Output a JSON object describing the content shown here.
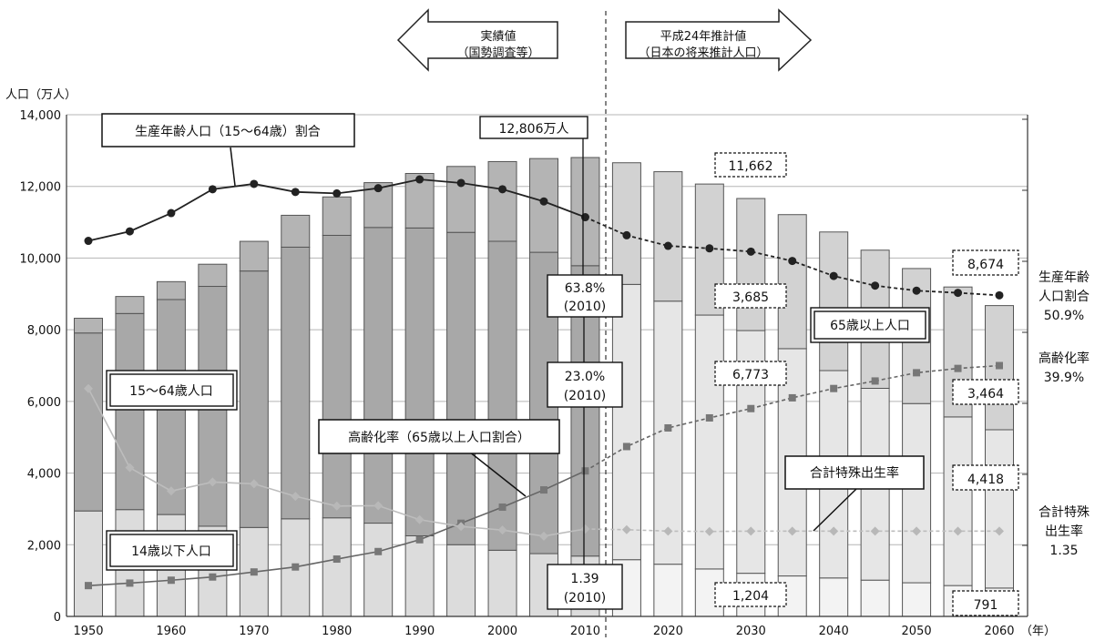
{
  "chart_data": {
    "type": "bar",
    "y_axis_label": "人口（万人）",
    "x_unit": "（年）",
    "ylim": [
      0,
      14000
    ],
    "y_ticks": [
      "0",
      "2,000",
      "4,000",
      "6,000",
      "8,000",
      "10,000",
      "12,000",
      "14,000"
    ],
    "x_tick_labels": [
      "1950",
      "1960",
      "1970",
      "1980",
      "1990",
      "2000",
      "2010",
      "2020",
      "2030",
      "2040",
      "2050",
      "2060"
    ],
    "years": [
      1950,
      1955,
      1960,
      1965,
      1970,
      1975,
      1980,
      1985,
      1990,
      1995,
      2000,
      2005,
      2010,
      2015,
      2020,
      2025,
      2030,
      2035,
      2040,
      2045,
      2050,
      2055,
      2060
    ],
    "stacks": {
      "under15": [
        2943,
        2980,
        2843,
        2517,
        2482,
        2723,
        2751,
        2603,
        2249,
        2001,
        1847,
        1752,
        1684,
        1583,
        1457,
        1324,
        1204,
        1129,
        1073,
        1012,
        939,
        861,
        791
      ],
      "age15_64": [
        4966,
        5473,
        6000,
        6693,
        7157,
        7581,
        7883,
        8251,
        8590,
        8716,
        8622,
        8409,
        8103,
        7682,
        7341,
        7085,
        6773,
        6343,
        5787,
        5353,
        5001,
        4706,
        4418
      ],
      "over65": [
        411,
        475,
        535,
        618,
        739,
        887,
        1065,
        1247,
        1489,
        1826,
        2201,
        2567,
        2948,
        3395,
        3612,
        3657,
        3685,
        3741,
        3868,
        3856,
        3768,
        3626,
        3464
      ],
      "total": [
        8320,
        8928,
        9342,
        9828,
        10467,
        11194,
        11706,
        12105,
        12361,
        12557,
        12693,
        12777,
        12806,
        12660,
        12410,
        12066,
        11662,
        11212,
        10728,
        10221,
        9708,
        9193,
        8674
      ]
    },
    "lines": [
      {
        "name": "生産年齢人口（15〜64歳）割合",
        "values": [
          10480,
          10745,
          11255,
          11920,
          12070,
          11845,
          11805,
          11950,
          12195,
          12095,
          11920,
          11580,
          11140,
          10635,
          10340,
          10270,
          10180,
          9920,
          9500,
          9230,
          9090,
          9030,
          8960
        ]
      },
      {
        "name": "高齢化率（65歳以上人口割合）",
        "values": [
          860,
          930,
          1010,
          1100,
          1240,
          1380,
          1600,
          1810,
          2140,
          2600,
          3050,
          3530,
          4060,
          4740,
          5260,
          5540,
          5800,
          6100,
          6360,
          6570,
          6800,
          6920,
          7000
        ]
      },
      {
        "name": "合計特殊出生率",
        "values": [
          6360,
          4150,
          3500,
          3750,
          3700,
          3350,
          3080,
          3090,
          2700,
          2510,
          2410,
          2240,
          2440,
          2420,
          2380,
          2370,
          2380,
          2380,
          2380,
          2380,
          2380,
          2380,
          2380
        ]
      }
    ]
  },
  "header": {
    "left_arrow_l1": "実績値",
    "left_arrow_l2": "（国勢調査等）",
    "right_arrow_l1": "平成24年推計値",
    "right_arrow_l2": "（日本の将来推計人口）"
  },
  "labels": {
    "working_ratio": "生産年齢人口（15〜64歳）割合",
    "age15_64": "15〜64歳人口",
    "aging_rate": "高齢化率（65歳以上人口割合）",
    "under14": "14歳以下人口",
    "over65": "65歳以上人口",
    "tfr": "合計特殊出生率"
  },
  "callouts": {
    "total_2010": "12,806万人",
    "ratio_2010_l1": "63.8%",
    "ratio_2010_l2": "(2010)",
    "aging_2010_l1": "23.0%",
    "aging_2010_l2": "(2010)",
    "tfr_2010_l1": "1.39",
    "tfr_2010_l2": "(2010)",
    "total_2030": "11,662",
    "over65_2030": "3,685",
    "age15_64_2030": "6,773",
    "under15_2030": "1,204",
    "total_2060": "8,674",
    "over65_2060": "3,464",
    "age15_64_2060": "4,418",
    "under15_2060": "791"
  },
  "right_labels": {
    "ratio_l1": "生産年齢",
    "ratio_l2": "人口割合",
    "ratio_l3": "50.9%",
    "aging_l1": "高齢化率",
    "aging_l2": "39.9%",
    "tfr_l1": "合計特殊",
    "tfr_l2": "出生率",
    "tfr_l3": "1.35"
  }
}
